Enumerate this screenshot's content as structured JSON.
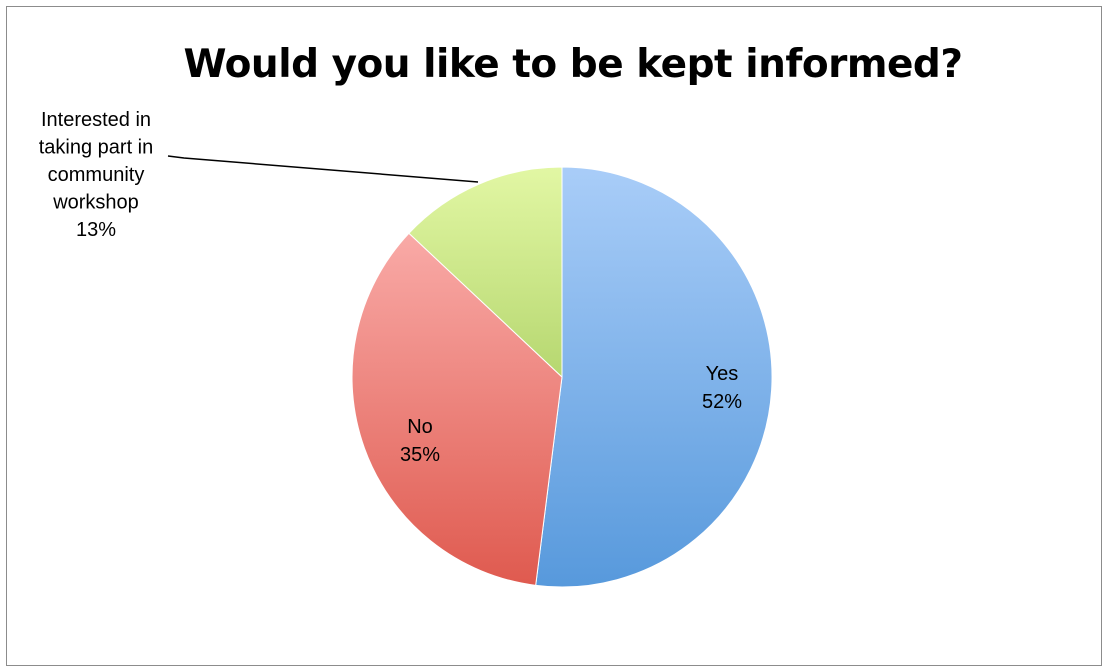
{
  "chart_data": {
    "type": "pie",
    "title": "Would you like to be kept informed?",
    "slices": [
      {
        "key": "yes",
        "label_lines": [
          "Yes",
          "52%"
        ],
        "value": 52,
        "colors": {
          "light": "#a9cdf8",
          "dark": "#5799dc"
        }
      },
      {
        "key": "no",
        "label_lines": [
          "No",
          "35%"
        ],
        "value": 35,
        "colors": {
          "light": "#f9aaa7",
          "dark": "#df5a4f"
        }
      },
      {
        "key": "workshop",
        "label_lines": [
          "Interested in",
          "taking part in",
          "community",
          "workshop",
          "13%"
        ],
        "value": 13,
        "colors": {
          "light": "#e2f7a4",
          "dark": "#b6d770"
        }
      }
    ],
    "legend": "none",
    "start_angle": "12 o'clock",
    "direction": "clockwise"
  }
}
